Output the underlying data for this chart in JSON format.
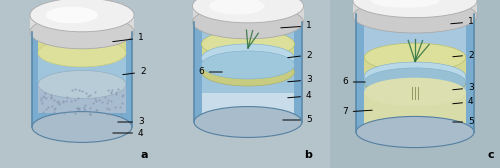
{
  "fig_width": 5.0,
  "fig_height": 1.68,
  "dpi": 100,
  "bg_color": "#a8b8c0",
  "panel_a_bg": "#b8c5cc",
  "panel_b_bg": "#b8c5cc",
  "panel_c_bg": "#aabac2",
  "label_a": "a",
  "label_b": "b",
  "label_c": "c",
  "annotation_fontsize": 6.5,
  "panel_label_fontsize": 8
}
